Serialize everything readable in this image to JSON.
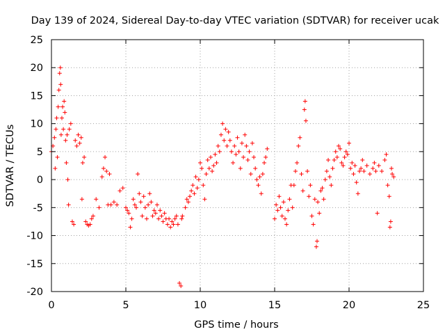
{
  "chart_data": {
    "type": "scatter",
    "title": "Day 139 of 2024, Sidereal Day-to-day VTEC variation (SDTVAR) for receiver ucak",
    "xlabel": "GPS time / hours",
    "ylabel": "SDTVAR / TECUs",
    "xlim": [
      0,
      25
    ],
    "ylim": [
      -20,
      25
    ],
    "x_ticks": [
      "0",
      "5",
      "10",
      "15",
      "20",
      "25"
    ],
    "y_ticks": [
      "-20",
      "-15",
      "-10",
      "-5",
      "0",
      "5",
      "10",
      "15",
      "20",
      "25"
    ],
    "grid": true,
    "marker": "+",
    "colors": {
      "series": "#ff0000",
      "axis": "#000000",
      "grid": "#a0a0a0"
    },
    "series": [
      {
        "name": "SDTVAR",
        "points": [
          [
            0.0,
            5.0
          ],
          [
            0.1,
            6.0
          ],
          [
            0.2,
            7.5
          ],
          [
            0.25,
            2.0
          ],
          [
            0.3,
            9.0
          ],
          [
            0.35,
            11.0
          ],
          [
            0.4,
            4.0
          ],
          [
            0.45,
            13.0
          ],
          [
            0.5,
            16.0
          ],
          [
            0.55,
            19.0
          ],
          [
            0.6,
            20.0
          ],
          [
            0.62,
            17.0
          ],
          [
            0.65,
            8.0
          ],
          [
            0.7,
            11.0
          ],
          [
            0.75,
            13.0
          ],
          [
            0.8,
            9.0
          ],
          [
            0.85,
            14.0
          ],
          [
            0.9,
            12.0
          ],
          [
            0.95,
            7.0
          ],
          [
            1.0,
            3.0
          ],
          [
            1.05,
            8.0
          ],
          [
            1.1,
            0.0
          ],
          [
            1.15,
            -4.5
          ],
          [
            1.2,
            9.0
          ],
          [
            1.3,
            10.0
          ],
          [
            1.4,
            -7.5
          ],
          [
            1.5,
            -8.0
          ],
          [
            1.6,
            7.0
          ],
          [
            1.7,
            6.0
          ],
          [
            1.8,
            8.0
          ],
          [
            1.9,
            6.5
          ],
          [
            2.0,
            7.5
          ],
          [
            2.05,
            -3.5
          ],
          [
            2.1,
            3.0
          ],
          [
            2.2,
            4.0
          ],
          [
            2.3,
            -7.5
          ],
          [
            2.4,
            -8.0
          ],
          [
            2.5,
            -8.2
          ],
          [
            2.6,
            -8.0
          ],
          [
            2.7,
            -7.0
          ],
          [
            2.8,
            -6.5
          ],
          [
            3.0,
            -3.5
          ],
          [
            3.2,
            -5.0
          ],
          [
            3.4,
            0.5
          ],
          [
            3.5,
            2.0
          ],
          [
            3.6,
            4.0
          ],
          [
            3.7,
            1.5
          ],
          [
            3.8,
            -4.5
          ],
          [
            3.9,
            1.0
          ],
          [
            4.0,
            -4.5
          ],
          [
            4.2,
            -4.0
          ],
          [
            4.4,
            -4.5
          ],
          [
            4.6,
            -2.0
          ],
          [
            4.8,
            -1.5
          ],
          [
            5.0,
            -5.0
          ],
          [
            5.1,
            -5.5
          ],
          [
            5.2,
            -6.0
          ],
          [
            5.3,
            -8.5
          ],
          [
            5.4,
            -7.0
          ],
          [
            5.5,
            -3.5
          ],
          [
            5.6,
            -4.5
          ],
          [
            5.7,
            -5.0
          ],
          [
            5.8,
            1.0
          ],
          [
            5.9,
            -2.5
          ],
          [
            6.0,
            -4.0
          ],
          [
            6.1,
            -6.5
          ],
          [
            6.2,
            -3.0
          ],
          [
            6.3,
            -5.0
          ],
          [
            6.4,
            -7.0
          ],
          [
            6.5,
            -4.5
          ],
          [
            6.6,
            -2.5
          ],
          [
            6.7,
            -4.0
          ],
          [
            6.8,
            -6.5
          ],
          [
            6.9,
            -5.5
          ],
          [
            7.0,
            -6.0
          ],
          [
            7.1,
            -4.5
          ],
          [
            7.2,
            -7.0
          ],
          [
            7.3,
            -5.5
          ],
          [
            7.4,
            -6.5
          ],
          [
            7.5,
            -7.5
          ],
          [
            7.6,
            -6.0
          ],
          [
            7.7,
            -7.0
          ],
          [
            7.8,
            -8.0
          ],
          [
            7.9,
            -7.0
          ],
          [
            8.0,
            -8.5
          ],
          [
            8.1,
            -7.5
          ],
          [
            8.2,
            -8.0
          ],
          [
            8.3,
            -7.0
          ],
          [
            8.4,
            -6.5
          ],
          [
            8.5,
            -8.0
          ],
          [
            8.6,
            -18.5
          ],
          [
            8.7,
            -19.0
          ],
          [
            8.75,
            -7.0
          ],
          [
            8.8,
            -6.5
          ],
          [
            9.0,
            -5.0
          ],
          [
            9.1,
            -3.5
          ],
          [
            9.2,
            -4.0
          ],
          [
            9.3,
            -3.0
          ],
          [
            9.4,
            -2.0
          ],
          [
            9.5,
            -1.0
          ],
          [
            9.6,
            -2.5
          ],
          [
            9.7,
            0.5
          ],
          [
            9.8,
            -1.5
          ],
          [
            9.9,
            0.0
          ],
          [
            10.0,
            3.0
          ],
          [
            10.1,
            2.0
          ],
          [
            10.2,
            -1.0
          ],
          [
            10.3,
            -3.5
          ],
          [
            10.4,
            1.0
          ],
          [
            10.5,
            3.5
          ],
          [
            10.6,
            2.0
          ],
          [
            10.7,
            4.0
          ],
          [
            10.8,
            1.5
          ],
          [
            10.9,
            2.5
          ],
          [
            11.0,
            4.5
          ],
          [
            11.1,
            3.0
          ],
          [
            11.2,
            6.0
          ],
          [
            11.3,
            5.0
          ],
          [
            11.4,
            8.0
          ],
          [
            11.5,
            10.0
          ],
          [
            11.6,
            7.0
          ],
          [
            11.7,
            9.0
          ],
          [
            11.8,
            6.0
          ],
          [
            11.9,
            8.5
          ],
          [
            12.0,
            7.0
          ],
          [
            12.1,
            5.0
          ],
          [
            12.2,
            3.0
          ],
          [
            12.3,
            6.0
          ],
          [
            12.4,
            4.5
          ],
          [
            12.5,
            7.5
          ],
          [
            12.6,
            5.0
          ],
          [
            12.7,
            2.0
          ],
          [
            12.8,
            6.5
          ],
          [
            12.9,
            4.0
          ],
          [
            13.0,
            8.0
          ],
          [
            13.1,
            6.0
          ],
          [
            13.2,
            3.5
          ],
          [
            13.3,
            5.0
          ],
          [
            13.4,
            1.0
          ],
          [
            13.5,
            6.5
          ],
          [
            13.6,
            4.0
          ],
          [
            13.7,
            2.0
          ],
          [
            13.8,
            0.0
          ],
          [
            13.9,
            -1.0
          ],
          [
            14.0,
            0.5
          ],
          [
            14.1,
            -2.5
          ],
          [
            14.2,
            1.0
          ],
          [
            14.3,
            3.0
          ],
          [
            14.4,
            4.0
          ],
          [
            14.5,
            5.5
          ],
          [
            15.0,
            -7.0
          ],
          [
            15.1,
            -4.5
          ],
          [
            15.2,
            -5.5
          ],
          [
            15.3,
            -3.0
          ],
          [
            15.4,
            -5.0
          ],
          [
            15.5,
            -6.5
          ],
          [
            15.6,
            -4.0
          ],
          [
            15.7,
            -7.0
          ],
          [
            15.8,
            -8.0
          ],
          [
            15.9,
            -5.5
          ],
          [
            16.0,
            -3.5
          ],
          [
            16.1,
            -1.0
          ],
          [
            16.2,
            -5.0
          ],
          [
            16.3,
            -1.0
          ],
          [
            16.4,
            1.5
          ],
          [
            16.5,
            3.0
          ],
          [
            16.6,
            6.0
          ],
          [
            16.7,
            7.5
          ],
          [
            16.8,
            1.0
          ],
          [
            16.9,
            -2.0
          ],
          [
            17.0,
            12.5
          ],
          [
            17.05,
            14.0
          ],
          [
            17.1,
            10.5
          ],
          [
            17.2,
            1.5
          ],
          [
            17.3,
            -3.0
          ],
          [
            17.4,
            -1.0
          ],
          [
            17.5,
            -6.5
          ],
          [
            17.6,
            -8.0
          ],
          [
            17.7,
            -3.5
          ],
          [
            17.8,
            -12.0
          ],
          [
            17.85,
            -11.0
          ],
          [
            17.9,
            -4.0
          ],
          [
            18.0,
            -6.0
          ],
          [
            18.1,
            -2.0
          ],
          [
            18.2,
            -1.5
          ],
          [
            18.3,
            -3.5
          ],
          [
            18.4,
            0.0
          ],
          [
            18.5,
            1.5
          ],
          [
            18.6,
            3.5
          ],
          [
            18.7,
            0.5
          ],
          [
            18.8,
            -1.0
          ],
          [
            18.9,
            2.0
          ],
          [
            19.0,
            3.5
          ],
          [
            19.1,
            5.0
          ],
          [
            19.2,
            4.0
          ],
          [
            19.3,
            6.0
          ],
          [
            19.4,
            5.5
          ],
          [
            19.5,
            3.0
          ],
          [
            19.6,
            2.5
          ],
          [
            19.7,
            4.0
          ],
          [
            19.8,
            5.0
          ],
          [
            19.9,
            4.5
          ],
          [
            20.0,
            6.5
          ],
          [
            20.1,
            2.0
          ],
          [
            20.2,
            3.0
          ],
          [
            20.3,
            1.0
          ],
          [
            20.4,
            2.5
          ],
          [
            20.5,
            -0.5
          ],
          [
            20.6,
            -2.5
          ],
          [
            20.7,
            1.5
          ],
          [
            20.8,
            2.0
          ],
          [
            20.9,
            3.5
          ],
          [
            21.0,
            1.5
          ],
          [
            21.2,
            2.5
          ],
          [
            21.4,
            1.0
          ],
          [
            21.6,
            2.0
          ],
          [
            21.7,
            3.0
          ],
          [
            21.8,
            1.5
          ],
          [
            21.9,
            -6.0
          ],
          [
            22.0,
            2.5
          ],
          [
            22.2,
            1.5
          ],
          [
            22.4,
            3.5
          ],
          [
            22.5,
            4.5
          ],
          [
            22.6,
            -1.0
          ],
          [
            22.7,
            -3.0
          ],
          [
            22.75,
            -8.5
          ],
          [
            22.8,
            -7.5
          ],
          [
            22.85,
            2.0
          ],
          [
            22.9,
            1.0
          ],
          [
            23.0,
            0.5
          ]
        ]
      }
    ]
  }
}
